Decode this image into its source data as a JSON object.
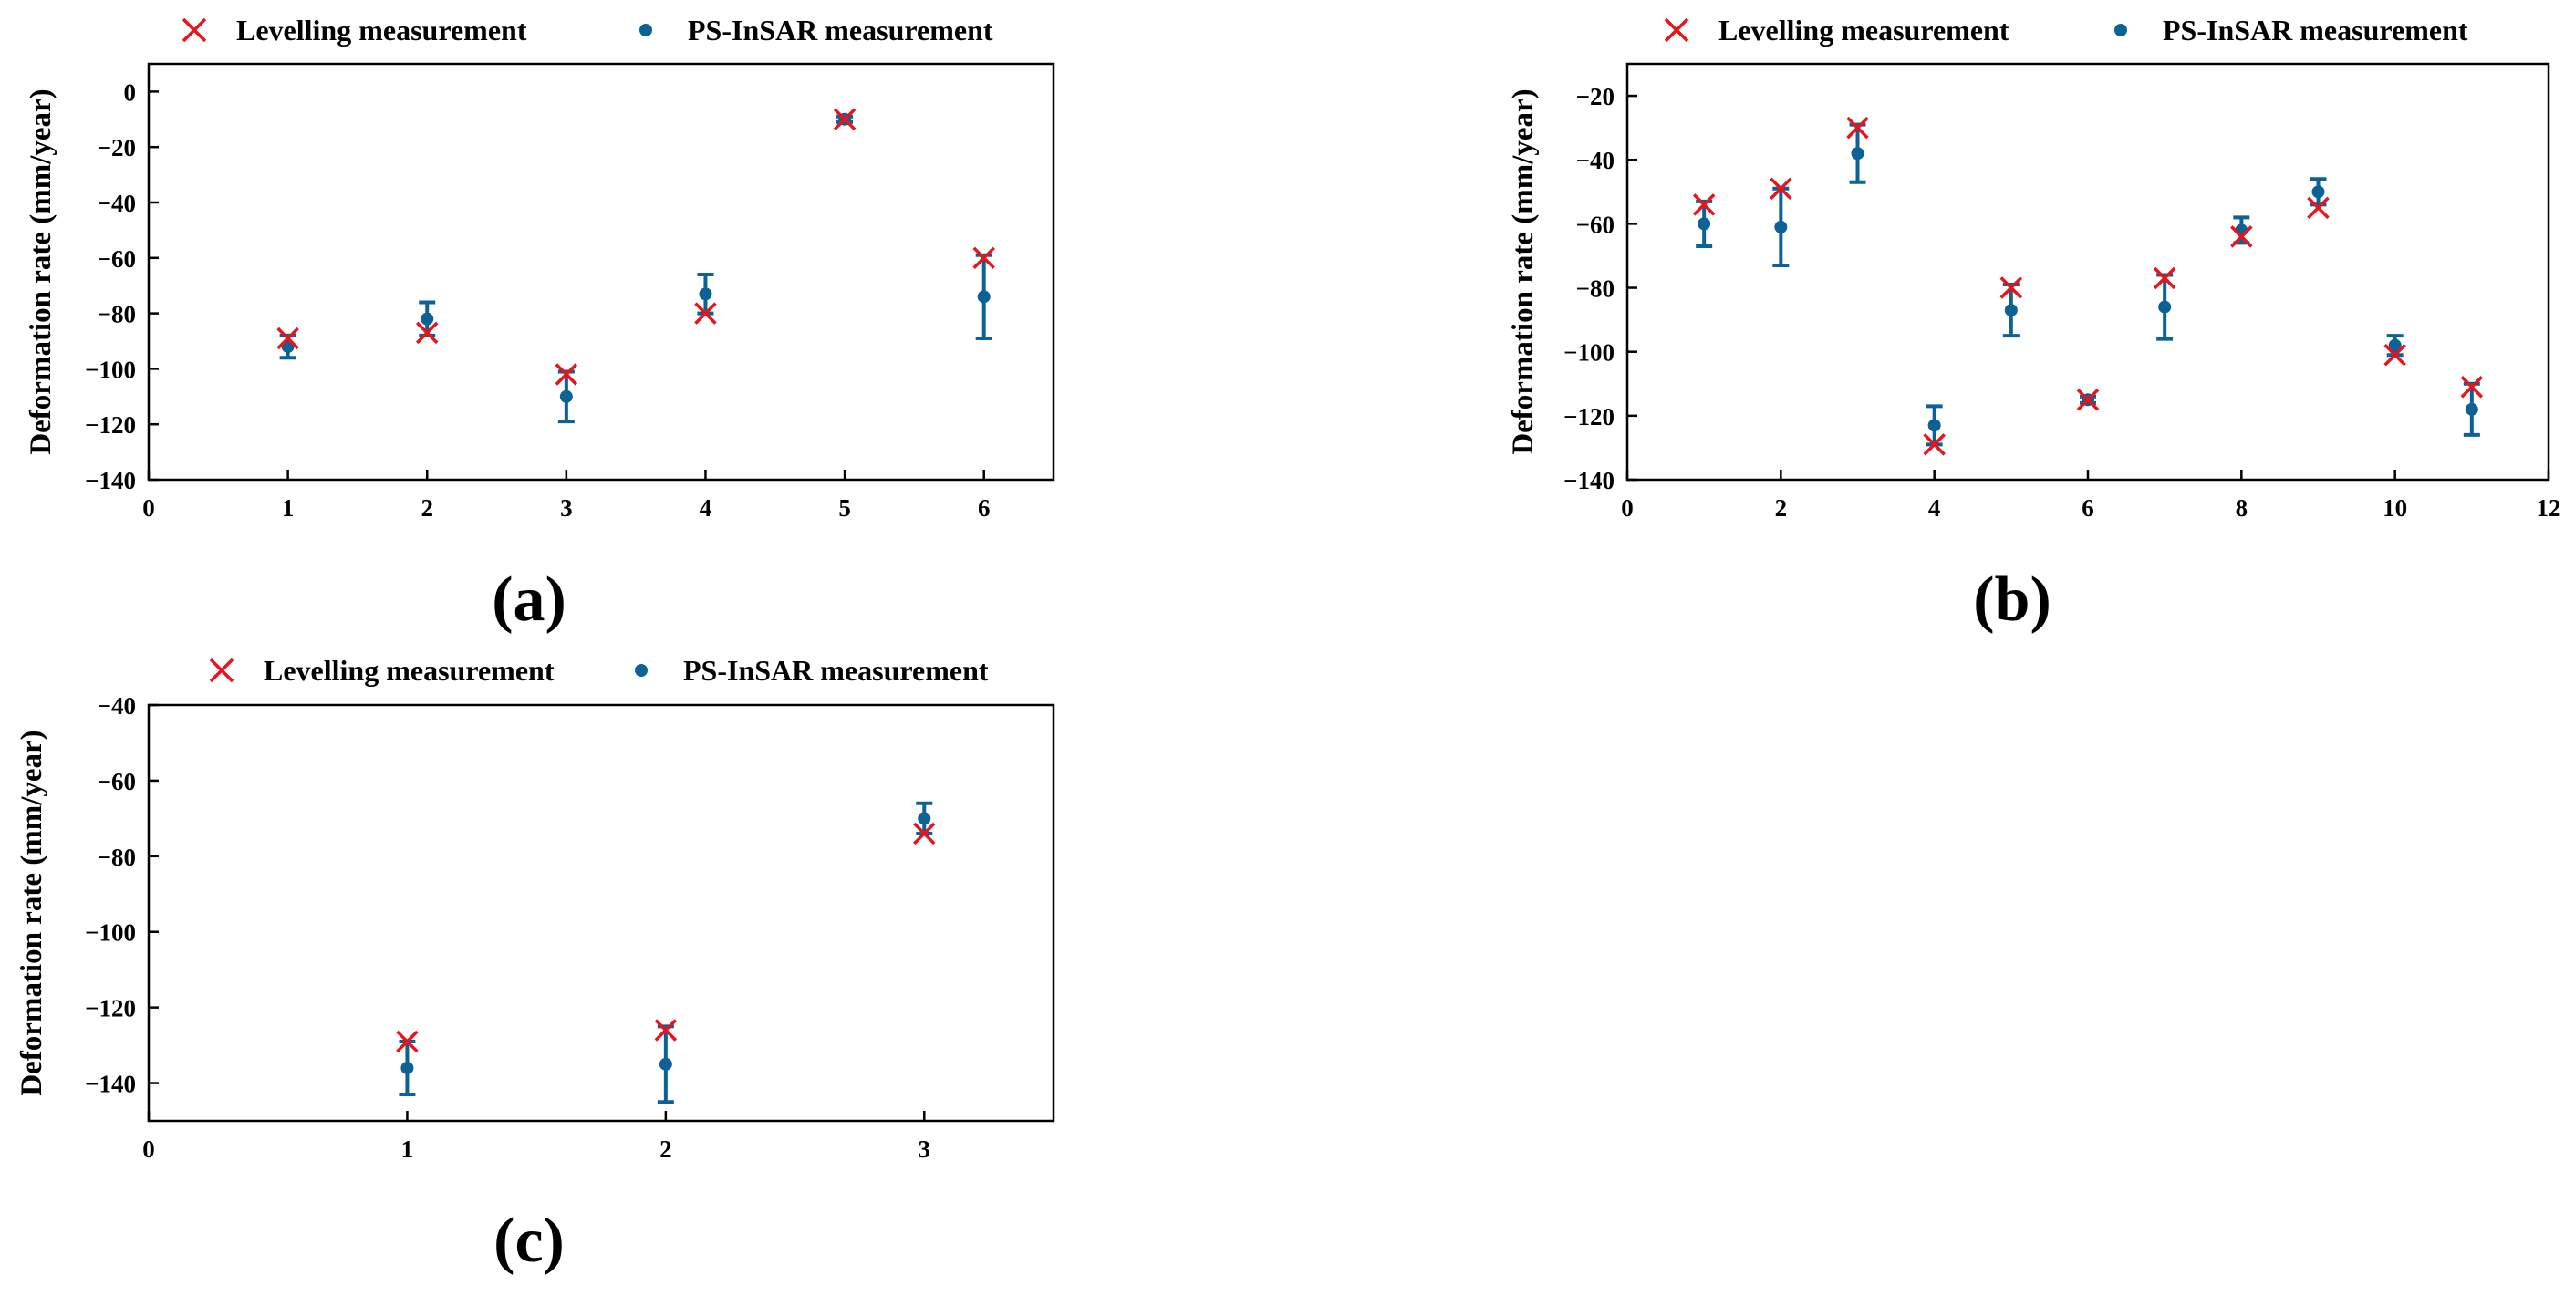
{
  "figure": {
    "legend": {
      "levelling": "Levelling measurement",
      "insar": "PS-InSAR measurement"
    },
    "colors": {
      "levelling": "#e8141c",
      "insar": "#0d6295",
      "axis": "#000000"
    }
  },
  "chart_data": [
    {
      "type": "scatter",
      "panel_label": "(a)",
      "xlabel": "",
      "ylabel": "Deformation rate (mm/year)",
      "xlim": [
        0,
        6.5
      ],
      "ylim": [
        -140,
        10
      ],
      "xticks": [
        0,
        1,
        2,
        3,
        4,
        5,
        6
      ],
      "yticks": [
        0,
        -20,
        -40,
        -60,
        -80,
        -100,
        -120,
        -140
      ],
      "xtick_labels": [
        "0",
        "1",
        "2",
        "3",
        "4",
        "5",
        "6"
      ],
      "ytick_labels": [
        "0",
        "−20",
        "−40",
        "−60",
        "−80",
        "−100",
        "−120",
        "−140"
      ],
      "series": [
        {
          "name": "Levelling measurement",
          "marker": "x",
          "x": [
            1,
            2,
            3,
            4,
            5,
            6
          ],
          "y": [
            -89,
            -87,
            -102,
            -80,
            -10,
            -60
          ]
        },
        {
          "name": "PS-InSAR measurement",
          "marker": "dot",
          "x": [
            1,
            2,
            3,
            4,
            5,
            6
          ],
          "y": [
            -92,
            -82,
            -110,
            -73,
            -10,
            -74
          ],
          "error": [
            4,
            6,
            9,
            7,
            1,
            15
          ]
        }
      ]
    },
    {
      "type": "scatter",
      "panel_label": "(b)",
      "xlabel": "",
      "ylabel": "Deformation rate (mm/year)",
      "xlim": [
        0,
        12
      ],
      "ylim": [
        -140,
        -10
      ],
      "xticks": [
        0,
        2,
        4,
        6,
        8,
        10,
        12
      ],
      "yticks": [
        -20,
        -40,
        -60,
        -80,
        -100,
        -120,
        -140
      ],
      "xtick_labels": [
        "0",
        "2",
        "4",
        "6",
        "8",
        "10",
        "12"
      ],
      "ytick_labels": [
        "−20",
        "−40",
        "−60",
        "−80",
        "−100",
        "−120",
        "−140"
      ],
      "series": [
        {
          "name": "Levelling measurement",
          "marker": "x",
          "x": [
            1,
            2,
            3,
            4,
            5,
            6,
            7,
            8,
            9,
            10,
            11
          ],
          "y": [
            -54,
            -49,
            -30,
            -129,
            -80,
            -115,
            -77,
            -64,
            -55,
            -101,
            -111
          ]
        },
        {
          "name": "PS-InSAR measurement",
          "marker": "dot",
          "x": [
            1,
            2,
            3,
            4,
            5,
            6,
            7,
            8,
            9,
            10,
            11
          ],
          "y": [
            -60,
            -61,
            -38,
            -123,
            -87,
            -115,
            -86,
            -62,
            -50,
            -98,
            -118
          ],
          "error": [
            7,
            12,
            9,
            6,
            8,
            1,
            10,
            4,
            4,
            3,
            8
          ]
        }
      ]
    },
    {
      "type": "scatter",
      "panel_label": "(c)",
      "xlabel": "",
      "ylabel": "Deformation rate (mm/year)",
      "xlim": [
        0,
        3.5
      ],
      "ylim": [
        -150,
        -40
      ],
      "xticks": [
        0,
        1,
        2,
        3
      ],
      "yticks": [
        -40,
        -60,
        -80,
        -100,
        -120,
        -140
      ],
      "xtick_labels": [
        "0",
        "1",
        "2",
        "3"
      ],
      "ytick_labels": [
        "−40",
        "−60",
        "−80",
        "−100",
        "−120",
        "−140"
      ],
      "series": [
        {
          "name": "Levelling measurement",
          "marker": "x",
          "x": [
            1,
            2,
            3
          ],
          "y": [
            -129,
            -126,
            -74
          ]
        },
        {
          "name": "PS-InSAR measurement",
          "marker": "dot",
          "x": [
            1,
            2,
            3
          ],
          "y": [
            -136,
            -135,
            -70
          ],
          "error": [
            7,
            10,
            4
          ]
        }
      ]
    }
  ]
}
